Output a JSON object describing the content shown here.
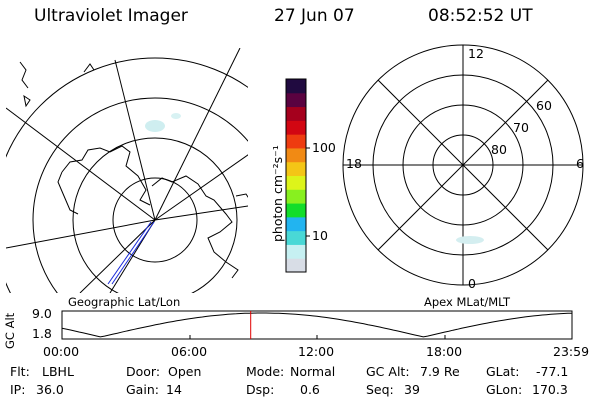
{
  "header": {
    "instrument": "Ultraviolet Imager",
    "date": "27 Jun 07",
    "time": "08:52:52 UT"
  },
  "colorbar": {
    "unit_label": "photon cm⁻²s⁻¹",
    "tick_high": "100",
    "tick_low": "10",
    "colors": [
      "#d8dde6",
      "#c6f0f2",
      "#49d8d6",
      "#22b4f0",
      "#12dd2a",
      "#88f01f",
      "#ddf41a",
      "#f4c616",
      "#f18a14",
      "#ee3c10",
      "#d20612",
      "#a5001d",
      "#5a0240",
      "#200a40"
    ]
  },
  "geo_map": {
    "label": "Geographic Lat/Lon"
  },
  "apex_map": {
    "label": "Apex MLat/MLT",
    "mlt_labels": {
      "top": "12",
      "left": "18",
      "right": "6",
      "bottom": "0"
    },
    "lat_labels": [
      "60",
      "70",
      "80"
    ]
  },
  "altitude_plot": {
    "ylabel": "GC Alt",
    "y_ticks": [
      "9.0",
      "1.8"
    ],
    "x_ticks": [
      "00:00",
      "06:00",
      "12:00",
      "18:00",
      "23:59"
    ],
    "current_time_hours": 8.88,
    "marker_color": "#e00000"
  },
  "status": {
    "filter_label": "Flt:",
    "filter_value": "LBHL",
    "door_label": "Door:",
    "door_value": "Open",
    "mode_label": "Mode:",
    "mode_value": "Normal",
    "gcalt_label": "GC Alt:",
    "gcalt_value": "7.9 Re",
    "glat_label": "GLat:",
    "glat_value": "-77.1",
    "ip_label": "IP:",
    "ip_value": "36.0",
    "gain_label": "Gain:",
    "gain_value": "14",
    "dsp_label": "Dsp:",
    "dsp_value": "0.6",
    "seq_label": "Seq:",
    "seq_value": "39",
    "glon_label": "GLon:",
    "glon_value": "170.3"
  }
}
